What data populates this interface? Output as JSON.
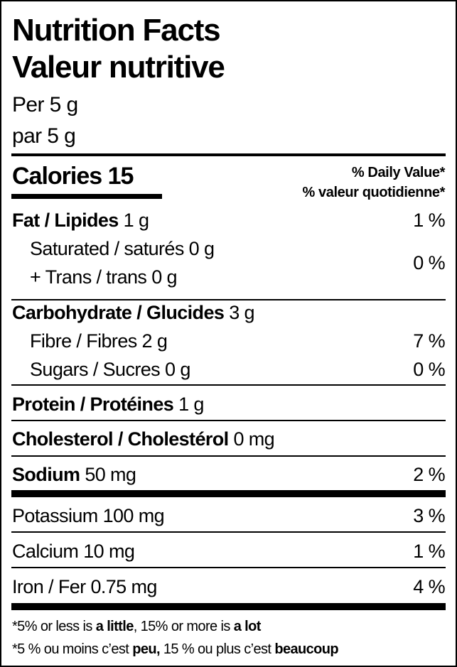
{
  "title_en": "Nutrition Facts",
  "title_fr": "Valeur nutritive",
  "serving_en": "Per 5 g",
  "serving_fr": "par 5 g",
  "calories": {
    "label": "Calories",
    "value": "15"
  },
  "daily_value_en": "% Daily Value*",
  "daily_value_fr": "% valeur quotidienne*",
  "nutrients": {
    "fat": {
      "label": "Fat / Lipides",
      "amount": "1 g",
      "dv": "1 %"
    },
    "saturated": {
      "label": "Saturated / saturés",
      "amount": "0 g"
    },
    "trans": {
      "label": "+ Trans / trans",
      "amount": "0 g"
    },
    "sat_trans_dv": "0 %",
    "carbohydrate": {
      "label": "Carbohydrate / Glucides",
      "amount": "3 g"
    },
    "fibre": {
      "label": "Fibre / Fibres",
      "amount": "2 g",
      "dv": "7 %"
    },
    "sugars": {
      "label": "Sugars / Sucres",
      "amount": "0 g",
      "dv": "0 %"
    },
    "protein": {
      "label": "Protein / Protéines",
      "amount": "1 g"
    },
    "cholesterol": {
      "label": "Cholesterol / Cholestérol",
      "amount": "0 mg"
    },
    "sodium": {
      "label": "Sodium",
      "amount": "50 mg",
      "dv": "2 %"
    },
    "potassium": {
      "label": "Potassium",
      "amount": "100 mg",
      "dv": "3 %"
    },
    "calcium": {
      "label": "Calcium",
      "amount": "10 mg",
      "dv": "1 %"
    },
    "iron": {
      "label": "Iron / Fer",
      "amount": "0.75 mg",
      "dv": "4 %"
    }
  },
  "footnote_en": {
    "a": "*5% or less is ",
    "b": "a little",
    "c": ", 15% or more is ",
    "d": "a lot"
  },
  "footnote_fr": {
    "a": "*5 % ou moins c’est ",
    "b": "peu,",
    "c": " 15 % ou plus c’est ",
    "d": "beaucoup"
  }
}
